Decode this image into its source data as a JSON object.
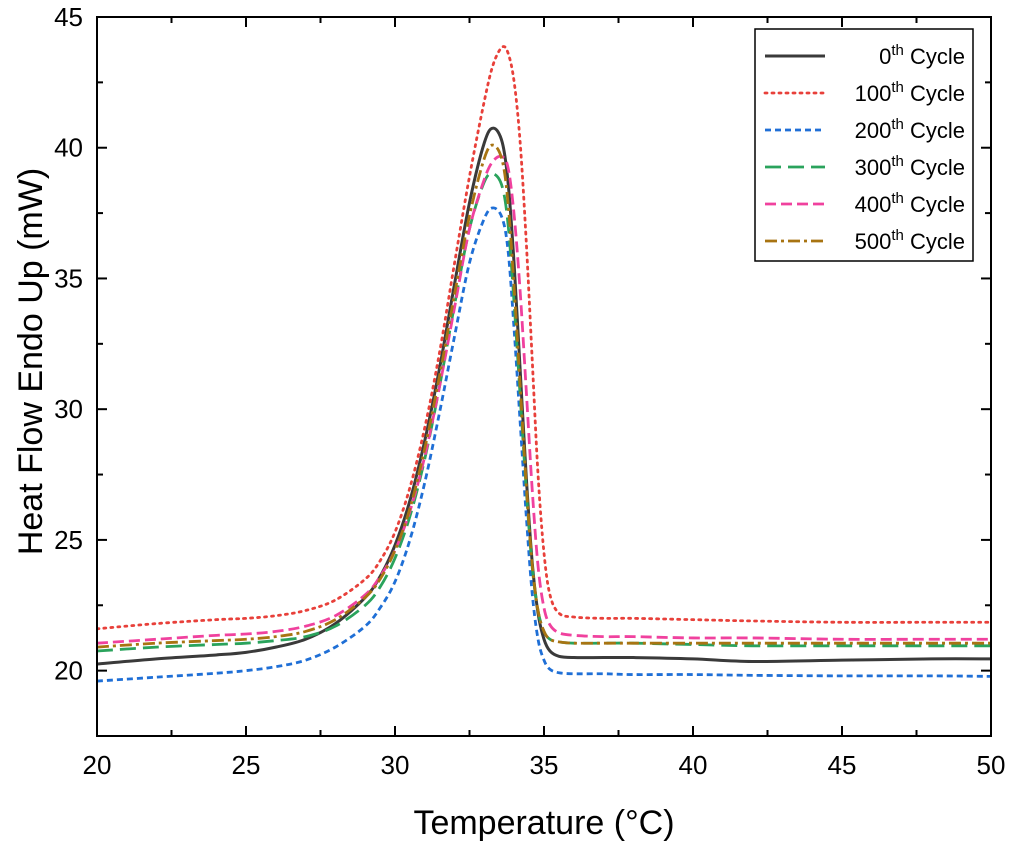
{
  "chart_data": {
    "type": "line",
    "title": "",
    "xlabel": "Temperature (°C)",
    "ylabel": "Heat Flow Endo Up (mW)",
    "xlim": [
      20,
      50
    ],
    "ylim": [
      17.5,
      45
    ],
    "xticks": [
      20,
      25,
      30,
      35,
      40,
      45,
      50
    ],
    "yticks": [
      20,
      25,
      30,
      35,
      40,
      45
    ],
    "grid": false,
    "legend_position": "top-right",
    "series": [
      {
        "name": "0th Cycle",
        "legend": {
          "num": "0",
          "sup": "th",
          "text": " Cycle"
        },
        "color": "#3a3a3a",
        "dash": "solid",
        "x": [
          20,
          22,
          24,
          25,
          26,
          27,
          28,
          29,
          29.5,
          30,
          30.5,
          31,
          31.5,
          32,
          32.5,
          33,
          33.3,
          33.6,
          33.8,
          34,
          34.2,
          34.4,
          34.6,
          34.8,
          35,
          35.2,
          35.5,
          36,
          37,
          38,
          40,
          42,
          45,
          48,
          50
        ],
        "y": [
          20.25,
          20.45,
          20.6,
          20.7,
          20.9,
          21.2,
          21.8,
          22.8,
          23.6,
          24.8,
          26.5,
          28.8,
          31.6,
          34.8,
          37.9,
          40.2,
          40.75,
          40.2,
          38.6,
          35.5,
          31.5,
          27.5,
          24.2,
          22.2,
          21.2,
          20.75,
          20.55,
          20.5,
          20.5,
          20.5,
          20.45,
          20.35,
          20.4,
          20.45,
          20.45
        ]
      },
      {
        "name": "100th Cycle",
        "legend": {
          "num": "100",
          "sup": "th",
          "text": " Cycle"
        },
        "color": "#e8403a",
        "dash": "dot",
        "x": [
          20,
          22,
          24,
          25,
          26,
          27,
          28,
          29,
          29.5,
          30,
          30.5,
          31,
          31.5,
          32,
          32.5,
          33,
          33.3,
          33.6,
          33.8,
          34,
          34.2,
          34.4,
          34.6,
          34.8,
          35,
          35.2,
          35.5,
          36,
          37,
          38,
          40,
          42,
          45,
          48,
          50
        ],
        "y": [
          21.6,
          21.8,
          21.95,
          22.0,
          22.1,
          22.3,
          22.7,
          23.5,
          24.2,
          25.3,
          27.0,
          29.3,
          32.2,
          35.6,
          38.9,
          41.8,
          43.2,
          43.85,
          43.6,
          42.5,
          40.2,
          36.5,
          32.0,
          27.5,
          24.5,
          22.9,
          22.2,
          22.05,
          22.0,
          22.0,
          21.95,
          21.9,
          21.85,
          21.85,
          21.85
        ]
      },
      {
        "name": "200th Cycle",
        "legend": {
          "num": "200",
          "sup": "th",
          "text": " Cycle"
        },
        "color": "#1f6fd6",
        "dash": "short-dash",
        "x": [
          20,
          22,
          24,
          25,
          26,
          27,
          28,
          29,
          29.5,
          30,
          30.5,
          31,
          31.5,
          32,
          32.5,
          33,
          33.3,
          33.6,
          33.8,
          34,
          34.2,
          34.4,
          34.6,
          34.8,
          35,
          35.2,
          35.5,
          36,
          37,
          38,
          40,
          42,
          45,
          48,
          50
        ],
        "y": [
          19.6,
          19.75,
          19.9,
          20.0,
          20.15,
          20.4,
          20.9,
          21.7,
          22.4,
          23.4,
          25.0,
          27.2,
          29.9,
          32.8,
          35.6,
          37.3,
          37.7,
          37.3,
          36.0,
          33.0,
          29.5,
          26.0,
          23.0,
          21.2,
          20.4,
          20.05,
          19.92,
          19.88,
          19.88,
          19.85,
          19.85,
          19.82,
          19.8,
          19.8,
          19.78
        ]
      },
      {
        "name": "300th Cycle",
        "legend": {
          "num": "300",
          "sup": "th",
          "text": " Cycle"
        },
        "color": "#2aa35c",
        "dash": "long-dash",
        "x": [
          20,
          22,
          24,
          25,
          26,
          27,
          28,
          29,
          29.5,
          30,
          30.5,
          31,
          31.5,
          32,
          32.5,
          33,
          33.3,
          33.6,
          33.8,
          34,
          34.2,
          34.4,
          34.6,
          34.8,
          35,
          35.2,
          35.5,
          36,
          37,
          38,
          40,
          42,
          45,
          48,
          50
        ],
        "y": [
          20.75,
          20.9,
          21.0,
          21.05,
          21.15,
          21.3,
          21.7,
          22.5,
          23.2,
          24.3,
          25.9,
          28.1,
          30.9,
          34.0,
          36.9,
          38.7,
          39.0,
          38.5,
          37.0,
          34.0,
          30.5,
          27.0,
          24.0,
          22.3,
          21.5,
          21.2,
          21.1,
          21.05,
          21.05,
          21.05,
          21.0,
          20.95,
          20.95,
          20.95,
          20.95
        ]
      },
      {
        "name": "400th Cycle",
        "legend": {
          "num": "400",
          "sup": "th",
          "text": " Cycle"
        },
        "color": "#f0419e",
        "dash": "dash",
        "x": [
          20,
          22,
          24,
          25,
          26,
          27,
          28,
          29,
          29.5,
          30,
          30.5,
          31,
          31.5,
          32,
          32.5,
          33,
          33.3,
          33.6,
          33.8,
          34,
          34.2,
          34.4,
          34.6,
          34.8,
          35,
          35.2,
          35.5,
          36,
          37,
          38,
          40,
          42,
          45,
          48,
          50
        ],
        "y": [
          21.05,
          21.2,
          21.35,
          21.4,
          21.5,
          21.7,
          22.1,
          22.9,
          23.6,
          24.6,
          26.1,
          28.2,
          30.9,
          33.9,
          36.9,
          38.8,
          39.5,
          39.65,
          39.2,
          37.4,
          34.5,
          30.8,
          27.0,
          24.0,
          22.4,
          21.75,
          21.45,
          21.35,
          21.3,
          21.3,
          21.25,
          21.25,
          21.2,
          21.2,
          21.2
        ]
      },
      {
        "name": "500th Cycle",
        "legend": {
          "num": "500",
          "sup": "th",
          "text": " Cycle"
        },
        "color": "#a87412",
        "dash": "dash-dot",
        "x": [
          20,
          22,
          24,
          25,
          26,
          27,
          28,
          29,
          29.5,
          30,
          30.5,
          31,
          31.5,
          32,
          32.5,
          33,
          33.3,
          33.6,
          33.8,
          34,
          34.2,
          34.4,
          34.6,
          34.8,
          35,
          35.2,
          35.5,
          36,
          37,
          38,
          40,
          42,
          45,
          48,
          50
        ],
        "y": [
          20.9,
          21.05,
          21.15,
          21.2,
          21.3,
          21.5,
          21.95,
          22.8,
          23.5,
          24.6,
          26.2,
          28.5,
          31.3,
          34.4,
          37.4,
          39.6,
          40.1,
          39.5,
          37.8,
          34.6,
          30.9,
          27.2,
          24.1,
          22.3,
          21.5,
          21.2,
          21.1,
          21.05,
          21.05,
          21.05,
          21.05,
          21.05,
          21.05,
          21.05,
          21.05
        ]
      }
    ]
  }
}
